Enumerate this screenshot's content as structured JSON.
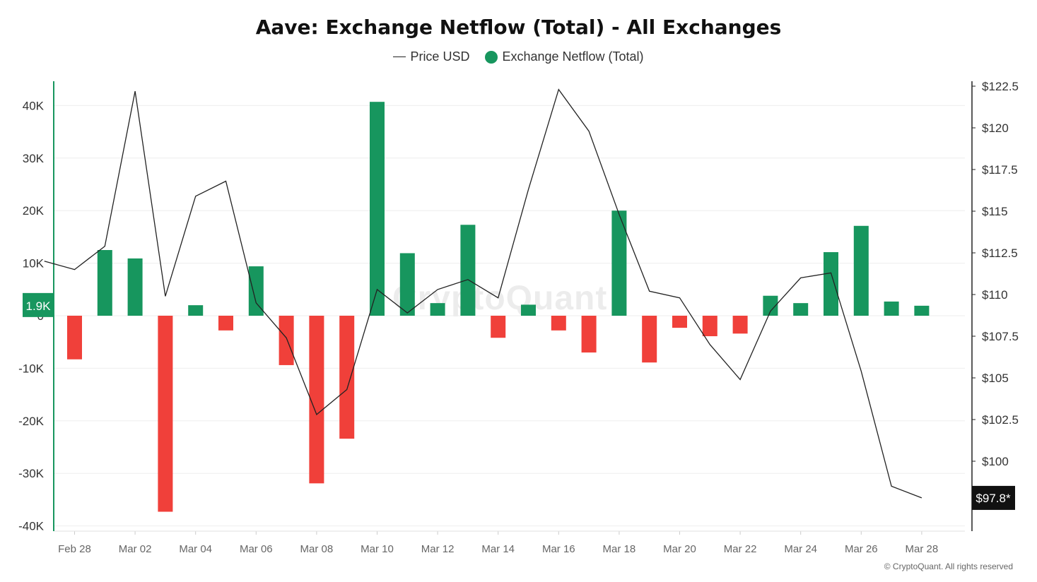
{
  "chart_data": {
    "type": "bar+line",
    "title": "Aave: Exchange Netflow (Total) - All Exchanges",
    "legend": [
      {
        "name": "Price USD",
        "marker": "line",
        "color": "#222222"
      },
      {
        "name": "Exchange Netflow (Total)",
        "marker": "dot",
        "color": "#17965e"
      }
    ],
    "colors": {
      "positive": "#17965e",
      "negative": "#f0403a",
      "price_line": "#222222",
      "left_axis": "#17965e"
    },
    "x_tick_labels": [
      "Feb 28",
      "Mar 02",
      "Mar 04",
      "Mar 06",
      "Mar 08",
      "Mar 10",
      "Mar 12",
      "Mar 14",
      "Mar 16",
      "Mar 18",
      "Mar 20",
      "Mar 22",
      "Mar 24",
      "Mar 26",
      "Mar 28"
    ],
    "left_axis": {
      "ticks": [
        40000,
        30000,
        20000,
        10000,
        0,
        -10000,
        -20000,
        -30000,
        -40000
      ],
      "tick_labels": [
        "40K",
        "30K",
        "20K",
        "10K",
        "0",
        "-10K",
        "-20K",
        "-30K",
        "-40K"
      ],
      "range": [
        -41000,
        42000
      ]
    },
    "right_axis": {
      "ticks": [
        122.5,
        120,
        117.5,
        115,
        112.5,
        110,
        107.5,
        105,
        102.5,
        100
      ],
      "tick_labels": [
        "$122.5",
        "$120",
        "$117.5",
        "$115",
        "$112.5",
        "$110",
        "$107.5",
        "$105",
        "$102.5",
        "$100"
      ]
    },
    "netflow": [
      {
        "date": "Feb 28",
        "value": -8300
      },
      {
        "date": "Mar 01",
        "value": 12500
      },
      {
        "date": "Mar 02",
        "value": 10900
      },
      {
        "date": "Mar 03",
        "value": -37300
      },
      {
        "date": "Mar 04",
        "value": 2000
      },
      {
        "date": "Mar 05",
        "value": -2800
      },
      {
        "date": "Mar 06",
        "value": 9400
      },
      {
        "date": "Mar 07",
        "value": -9400
      },
      {
        "date": "Mar 08",
        "value": -31900
      },
      {
        "date": "Mar 09",
        "value": -23400
      },
      {
        "date": "Mar 10",
        "value": 40700
      },
      {
        "date": "Mar 11",
        "value": 11900
      },
      {
        "date": "Mar 12",
        "value": 2400
      },
      {
        "date": "Mar 13",
        "value": 17300
      },
      {
        "date": "Mar 14",
        "value": -4200
      },
      {
        "date": "Mar 15",
        "value": 2100
      },
      {
        "date": "Mar 16",
        "value": -2800
      },
      {
        "date": "Mar 17",
        "value": -7000
      },
      {
        "date": "Mar 18",
        "value": 20000
      },
      {
        "date": "Mar 19",
        "value": -8900
      },
      {
        "date": "Mar 20",
        "value": -2300
      },
      {
        "date": "Mar 21",
        "value": -3900
      },
      {
        "date": "Mar 22",
        "value": -3400
      },
      {
        "date": "Mar 23",
        "value": 3800
      },
      {
        "date": "Mar 24",
        "value": 2400
      },
      {
        "date": "Mar 25",
        "value": 12100
      },
      {
        "date": "Mar 26",
        "value": 17100
      },
      {
        "date": "Mar 27",
        "value": 2700
      },
      {
        "date": "Mar 28",
        "value": 1900
      }
    ],
    "price": [
      {
        "date": "Feb 27",
        "value": 112.0
      },
      {
        "date": "Feb 28",
        "value": 111.5
      },
      {
        "date": "Mar 01",
        "value": 112.9
      },
      {
        "date": "Mar 02",
        "value": 122.2
      },
      {
        "date": "Mar 03",
        "value": 109.9
      },
      {
        "date": "Mar 04",
        "value": 115.9
      },
      {
        "date": "Mar 05",
        "value": 116.8
      },
      {
        "date": "Mar 06",
        "value": 109.5
      },
      {
        "date": "Mar 07",
        "value": 107.4
      },
      {
        "date": "Mar 08",
        "value": 102.8
      },
      {
        "date": "Mar 09",
        "value": 104.3
      },
      {
        "date": "Mar 10",
        "value": 110.3
      },
      {
        "date": "Mar 11",
        "value": 108.9
      },
      {
        "date": "Mar 12",
        "value": 110.3
      },
      {
        "date": "Mar 13",
        "value": 110.9
      },
      {
        "date": "Mar 14",
        "value": 109.8
      },
      {
        "date": "Mar 15",
        "value": 116.3
      },
      {
        "date": "Mar 16",
        "value": 122.3
      },
      {
        "date": "Mar 17",
        "value": 119.8
      },
      {
        "date": "Mar 18",
        "value": 114.8
      },
      {
        "date": "Mar 19",
        "value": 110.2
      },
      {
        "date": "Mar 20",
        "value": 109.8
      },
      {
        "date": "Mar 21",
        "value": 107.0
      },
      {
        "date": "Mar 22",
        "value": 104.9
      },
      {
        "date": "Mar 23",
        "value": 109.0
      },
      {
        "date": "Mar 24",
        "value": 111.0
      },
      {
        "date": "Mar 25",
        "value": 111.3
      },
      {
        "date": "Mar 26",
        "value": 105.4
      },
      {
        "date": "Mar 27",
        "value": 98.5
      },
      {
        "date": "Mar 28",
        "value": 97.8
      }
    ],
    "current_netflow_label": "1.9K",
    "current_price_label": "$97.8*"
  },
  "watermark": "CryptoQuant",
  "copyright": "© CryptoQuant. All rights reserved"
}
